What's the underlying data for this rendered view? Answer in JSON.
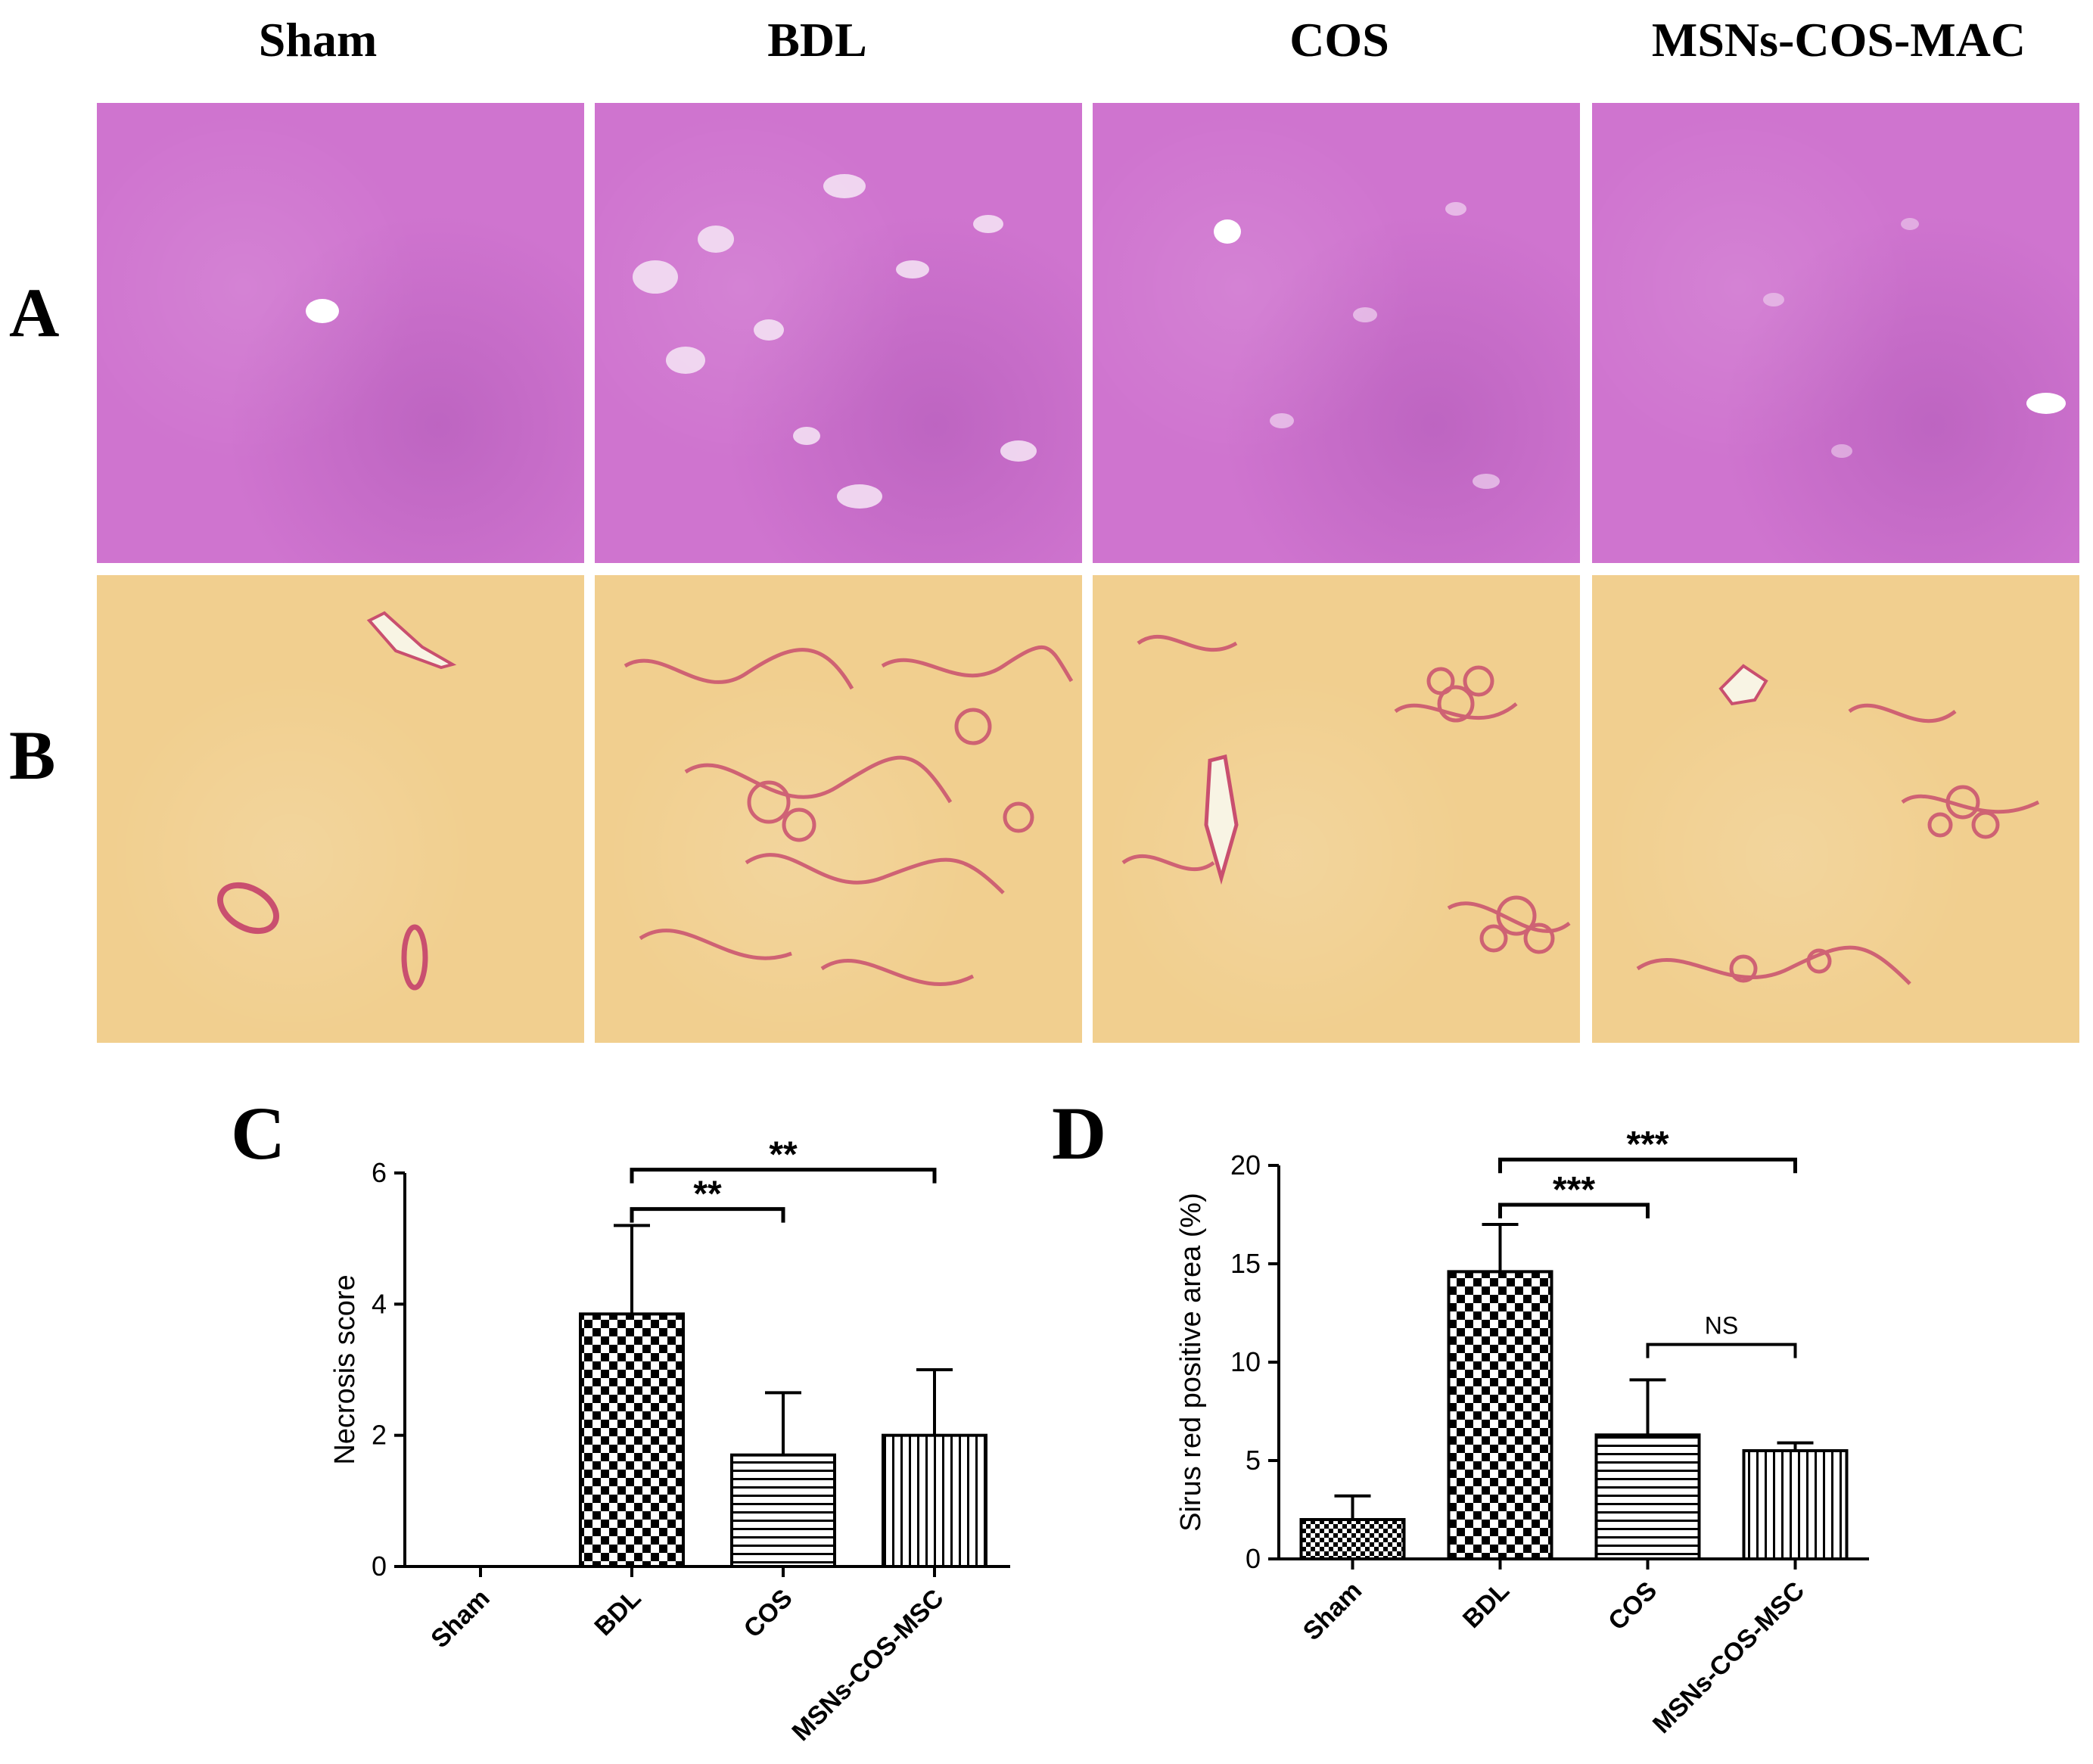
{
  "colors": {
    "he_stain": "#cf74cf",
    "sirius_stain": "#f1cf8f",
    "sirius_fiber": "#c94f6f",
    "axis": "#000000"
  },
  "headers": [
    "Sham",
    "BDL",
    "COS",
    "MSNs-COS-MAC"
  ],
  "rows": [
    {
      "label": "A",
      "stain": "he"
    },
    {
      "label": "B",
      "stain": "sr"
    }
  ],
  "chart_data": [
    {
      "panel": "C",
      "type": "bar",
      "ylabel": "Necrosis score",
      "xlabel": "",
      "ylim": [
        0,
        6
      ],
      "yticks": [
        0,
        2,
        4,
        6
      ],
      "categories": [
        "Sham",
        "BDL",
        "COS",
        "MSNs-COS-MSC"
      ],
      "values": [
        0,
        3.85,
        1.7,
        2.0
      ],
      "errors": [
        0,
        1.35,
        0.95,
        1.0
      ],
      "patterns": [
        "checker-fine",
        "checker",
        "horizontal-lines",
        "vertical-lines"
      ],
      "significance": [
        {
          "from": 1,
          "to": 2,
          "y": 5.45,
          "label": "**"
        },
        {
          "from": 1,
          "to": 3,
          "y": 6.05,
          "label": "**"
        }
      ]
    },
    {
      "panel": "D",
      "type": "bar",
      "ylabel": "Sirus red positive area (%)",
      "xlabel": "",
      "ylim": [
        0,
        20
      ],
      "yticks": [
        0,
        5,
        10,
        15,
        20
      ],
      "categories": [
        "Sham",
        "BDL",
        "COS",
        "MSNs-COS-MSC"
      ],
      "values": [
        2.0,
        14.6,
        6.3,
        5.5
      ],
      "errors": [
        1.2,
        2.4,
        2.8,
        0.4
      ],
      "patterns": [
        "checker-fine",
        "checker",
        "horizontal-lines",
        "vertical-lines"
      ],
      "significance": [
        {
          "from": 1,
          "to": 2,
          "y": 18.0,
          "label": "***"
        },
        {
          "from": 1,
          "to": 3,
          "y": 20.3,
          "label": "***"
        },
        {
          "from": 2,
          "to": 3,
          "y": 10.9,
          "label": "NS"
        }
      ]
    }
  ]
}
